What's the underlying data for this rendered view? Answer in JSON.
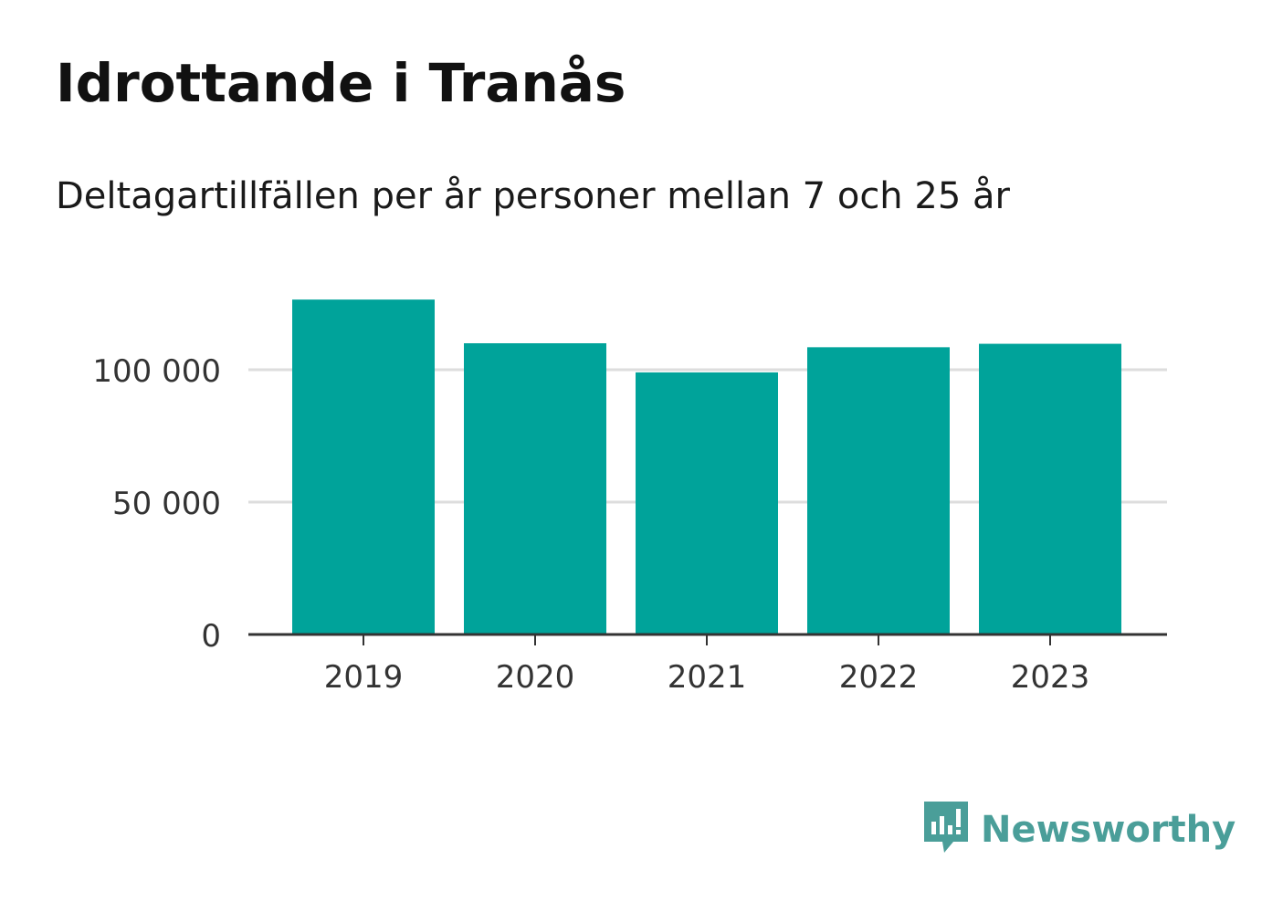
{
  "title": "Idrottande i Tranås",
  "subtitle": "Deltagartillfällen per år personer mellan 7 och 25 år",
  "brand": {
    "name": "Newsworthy",
    "icon": "newsworthy-bar-chart-icon",
    "color": "#4a9e99"
  },
  "colors": {
    "bar": "#00a39a",
    "grid": "#dddddd",
    "axis": "#333333",
    "tick_text": "#333333"
  },
  "chart_data": {
    "type": "bar",
    "title": "Idrottande i Tranås",
    "subtitle": "Deltagartillfällen per år personer mellan 7 och 25 år",
    "categories": [
      "2019",
      "2020",
      "2021",
      "2022",
      "2023"
    ],
    "values": [
      126500,
      110000,
      99000,
      108500,
      109800
    ],
    "ylim": [
      0,
      130000
    ],
    "yticks": [
      0,
      50000,
      100000
    ],
    "ytick_labels": [
      "0",
      "50 000",
      "100 000"
    ],
    "grid": true,
    "legend": "none"
  }
}
